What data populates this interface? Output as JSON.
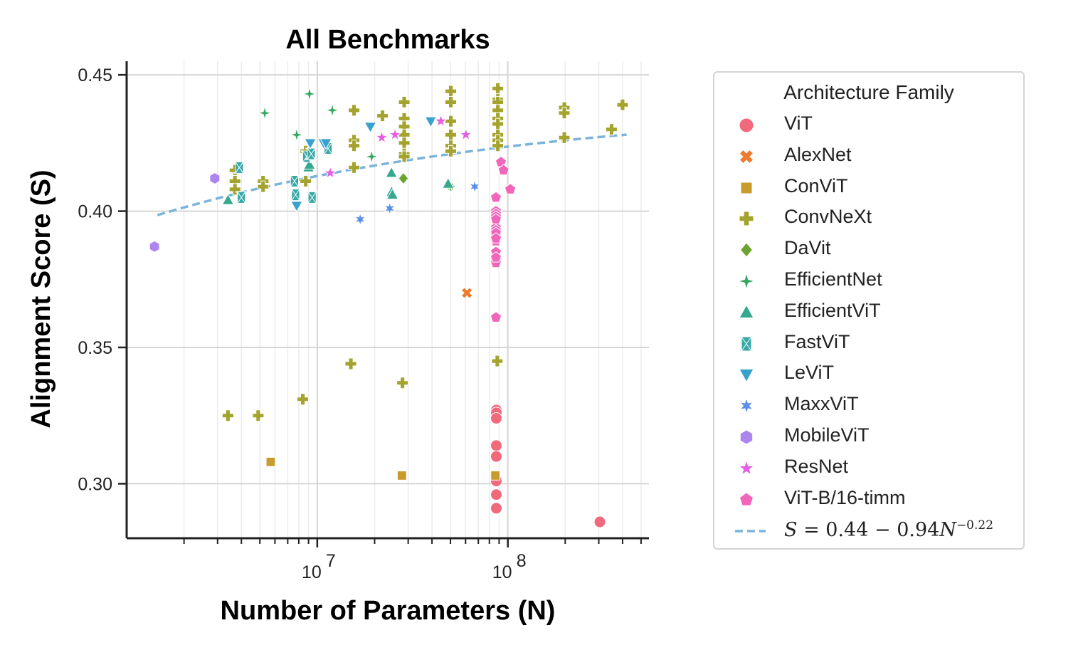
{
  "chart_data": {
    "type": "scatter",
    "title": "All Benchmarks",
    "xlabel": "Number of Parameters (N)",
    "ylabel": "Alignment Score (S)",
    "xscale": "log",
    "xlim": [
      1000000,
      550000000
    ],
    "ylim": [
      0.28,
      0.455
    ],
    "yticks": [
      "0.30",
      "0.35",
      "0.40",
      "0.45"
    ],
    "xticks": [
      {
        "base": "10",
        "exp": "7",
        "value": 10000000
      },
      {
        "base": "10",
        "exp": "8",
        "value": 100000000
      }
    ],
    "legend_title": "Architecture Family",
    "fit": {
      "label": "S = 0.44 − 0.94N^−0.22",
      "label_main": "S = 0.44 − 0.94N",
      "label_exp": "−0.22",
      "a": 0.44,
      "b": 0.94,
      "c": -0.22,
      "x_range": [
        1450000,
        420000000
      ],
      "color": "#7ab4dc"
    },
    "series": [
      {
        "name": "ViT",
        "marker": "circle",
        "color": "#f0697c",
        "x": [
          87000000,
          87000000,
          87000000,
          87000000,
          87000000,
          87000000,
          87000000,
          87000000,
          304000000
        ],
        "y": [
          0.327,
          0.326,
          0.324,
          0.314,
          0.31,
          0.301,
          0.296,
          0.291,
          0.286
        ]
      },
      {
        "name": "AlexNet",
        "marker": "x",
        "color": "#ec7b2e",
        "x": [
          61000000
        ],
        "y": [
          0.37
        ]
      },
      {
        "name": "ConViT",
        "marker": "square",
        "color": "#c99b2c",
        "x": [
          5700000,
          27800000,
          86000000
        ],
        "y": [
          0.308,
          0.303,
          0.303
        ]
      },
      {
        "name": "ConvNeXt",
        "marker": "plus",
        "color": "#a3a32d",
        "x": [
          3700000,
          3700000,
          3700000,
          5200000,
          5200000,
          8700000,
          8700000,
          15600000,
          15600000,
          15600000,
          15600000,
          22000000,
          28600000,
          28600000,
          28600000,
          28600000,
          28600000,
          28600000,
          28600000,
          50200000,
          50200000,
          50200000,
          50200000,
          50200000,
          50200000,
          88600000,
          88600000,
          88600000,
          88600000,
          88600000,
          88600000,
          88600000,
          88600000,
          88600000,
          197800000,
          197800000,
          197800000,
          350000000,
          400000000,
          3400000,
          4900000,
          8400000,
          15000000,
          28000000,
          88000000
        ],
        "y": [
          0.415,
          0.411,
          0.408,
          0.411,
          0.409,
          0.422,
          0.411,
          0.437,
          0.426,
          0.424,
          0.416,
          0.435,
          0.44,
          0.434,
          0.431,
          0.428,
          0.425,
          0.421,
          0.42,
          0.444,
          0.44,
          0.433,
          0.428,
          0.424,
          0.422,
          0.445,
          0.441,
          0.44,
          0.437,
          0.434,
          0.432,
          0.428,
          0.426,
          0.424,
          0.438,
          0.436,
          0.427,
          0.43,
          0.439,
          0.325,
          0.325,
          0.331,
          0.344,
          0.337,
          0.345
        ]
      },
      {
        "name": "DaVit",
        "marker": "diamond",
        "color": "#6aa42e",
        "x": [
          28300000,
          50000000
        ],
        "y": [
          0.412,
          0.409
        ]
      },
      {
        "name": "EfficientNet",
        "marker": "diamondstar",
        "color": "#34a860",
        "x": [
          5300000,
          7800000,
          9100000,
          9200000,
          12000000,
          19300000,
          50000000
        ],
        "y": [
          0.436,
          0.428,
          0.443,
          0.421,
          0.437,
          0.42,
          0.409
        ]
      },
      {
        "name": "EfficientViT",
        "marker": "triangle",
        "color": "#35a88e",
        "x": [
          3400000,
          9000000,
          9100000,
          24500000,
          24600000,
          24800000,
          48600000
        ],
        "y": [
          0.404,
          0.416,
          0.417,
          0.414,
          0.407,
          0.406,
          0.41
        ]
      },
      {
        "name": "FastViT",
        "marker": "hourglass",
        "color": "#36a7a7",
        "x": [
          3900000,
          4000000,
          7600000,
          7700000,
          8800000,
          9300000,
          9400000,
          11400000
        ],
        "y": [
          0.416,
          0.405,
          0.411,
          0.406,
          0.42,
          0.421,
          0.405,
          0.423
        ]
      },
      {
        "name": "LeViT",
        "marker": "triangledown",
        "color": "#38a2cf",
        "x": [
          7800000,
          9200000,
          10800000,
          11100000,
          19000000,
          39400000
        ],
        "y": [
          0.402,
          0.425,
          0.425,
          0.425,
          0.431,
          0.433
        ]
      },
      {
        "name": "MaxxViT",
        "marker": "star6",
        "color": "#5a8ee8",
        "x": [
          16800000,
          24000000,
          67000000
        ],
        "y": [
          0.397,
          0.401,
          0.409
        ]
      },
      {
        "name": "MobileViT",
        "marker": "hexagon",
        "color": "#ad85ee",
        "x": [
          1400000,
          2900000
        ],
        "y": [
          0.387,
          0.412
        ]
      },
      {
        "name": "ResNet",
        "marker": "star",
        "color": "#e65de6",
        "x": [
          11700000,
          21800000,
          25600000,
          44500000,
          60200000
        ],
        "y": [
          0.414,
          0.427,
          0.428,
          0.433,
          0.428
        ]
      },
      {
        "name": "ViT-B/16-timm",
        "marker": "pentagon",
        "color": "#f165ba",
        "x": [
          86600000,
          86600000,
          86600000,
          86600000,
          86600000,
          86600000,
          86600000,
          86600000,
          86600000,
          86600000,
          86600000,
          86600000,
          86600000,
          86600000,
          86600000,
          86600000,
          92000000,
          95000000,
          103000000
        ],
        "y": [
          0.405,
          0.4,
          0.399,
          0.398,
          0.394,
          0.393,
          0.391,
          0.389,
          0.385,
          0.382,
          0.381,
          0.361,
          0.397,
          0.392,
          0.39,
          0.383,
          0.418,
          0.415,
          0.408
        ]
      }
    ]
  }
}
